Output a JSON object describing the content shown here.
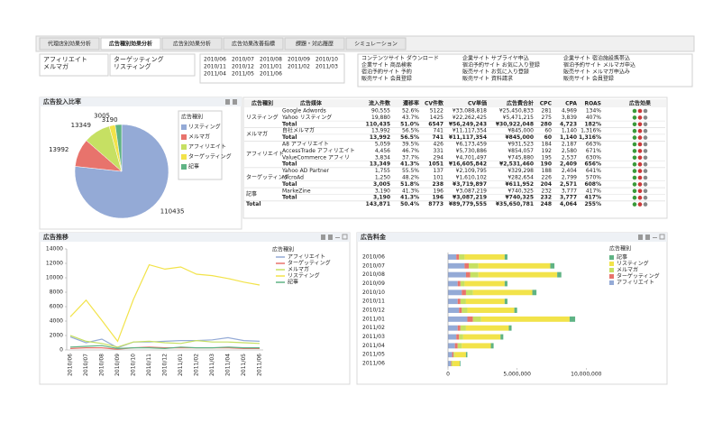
{
  "tabs": [
    "代理店別効果分析",
    "広告種別効果分析",
    "広告別効果分析",
    "広告効果改善指標",
    "課題・対応履歴",
    "シミュレーション"
  ],
  "active_tab": 1,
  "filters": {
    "types_a": [
      "アフィリエイト",
      "メルマガ"
    ],
    "types_b": [
      "ターゲッティング",
      "リスティング"
    ],
    "months": [
      "2010/06",
      "2010/07",
      "2010/08",
      "2010/09",
      "2010/10",
      "2010/11",
      "2010/12",
      "2011/01",
      "2011/02",
      "2011/03",
      "2011/04",
      "2011/05",
      "2011/06"
    ],
    "sites": [
      [
        "コンテンツサイト ダウンロード",
        "企業サイト 商品検索",
        "宿泊予約サイト 予約",
        "販売サイト 会員登録"
      ],
      [
        "企業サイト サプライヤ申込",
        "宿泊予約サイト お気に入り登録",
        "販売サイト お気に入り登録",
        "販売サイト 資料請求"
      ],
      [
        "企業サイト 宿泊施設携帯込",
        "宿泊予約サイト メルマガ申込",
        "販売サイト メルマガ申込み",
        "販売サイト 会員登録"
      ]
    ]
  },
  "table": {
    "columns": [
      "広告種別",
      "広告媒体",
      "流入件数",
      "遷移率",
      "CV件数",
      "CV単価",
      "広告費合計",
      "CPC",
      "CPA",
      "ROAS",
      "広告効果"
    ],
    "groups": [
      {
        "type": "リスティング",
        "rows": [
          [
            "Google Adwords",
            "90,555",
            "52.6%",
            "5122",
            "¥33,088,818",
            "¥25,450,833",
            "281",
            "4,969",
            "134%"
          ],
          [
            "Yahoo リスティング",
            "19,880",
            "43.7%",
            "1425",
            "¥22,262,425",
            "¥5,471,215",
            "275",
            "3,839",
            "407%"
          ],
          [
            "Total",
            "110,435",
            "51.0%",
            "6547",
            "¥56,249,243",
            "¥30,922,048",
            "280",
            "4,723",
            "182%"
          ]
        ]
      },
      {
        "type": "メルマガ",
        "rows": [
          [
            "自社メルマガ",
            "13,992",
            "56.5%",
            "741",
            "¥11,117,354",
            "¥845,000",
            "60",
            "1,140",
            "1,316%"
          ],
          [
            "Total",
            "13,992",
            "56.5%",
            "741",
            "¥11,117,354",
            "¥845,000",
            "60",
            "1,140",
            "1,316%"
          ]
        ]
      },
      {
        "type": "アフィリエイト",
        "rows": [
          [
            "A8 アフィリエイト",
            "5,059",
            "39.5%",
            "426",
            "¥6,173,459",
            "¥931,523",
            "184",
            "2,187",
            "663%"
          ],
          [
            "AccessTrade アフィリエイト",
            "4,456",
            "46.7%",
            "331",
            "¥5,730,886",
            "¥854,057",
            "192",
            "2,580",
            "671%"
          ],
          [
            "ValueCommerce アフィリ",
            "3,834",
            "37.7%",
            "294",
            "¥4,701,497",
            "¥745,880",
            "195",
            "2,537",
            "630%"
          ],
          [
            "Total",
            "13,349",
            "41.3%",
            "1051",
            "¥16,605,842",
            "¥2,531,460",
            "190",
            "2,409",
            "656%"
          ]
        ]
      },
      {
        "type": "ターゲッティング",
        "rows": [
          [
            "Yahoo AD Partner",
            "1,755",
            "55.5%",
            "137",
            "¥2,109,795",
            "¥329,298",
            "188",
            "2,404",
            "641%"
          ],
          [
            "MicroAd",
            "1,250",
            "48.2%",
            "101",
            "¥1,610,102",
            "¥282,654",
            "226",
            "2,799",
            "570%"
          ],
          [
            "Total",
            "3,005",
            "51.8%",
            "238",
            "¥3,719,897",
            "¥611,952",
            "204",
            "2,571",
            "608%"
          ]
        ]
      },
      {
        "type": "記事",
        "rows": [
          [
            "MarkeZine",
            "3,190",
            "41.3%",
            "196",
            "¥3,087,219",
            "¥740,325",
            "232",
            "3,777",
            "417%"
          ],
          [
            "Total",
            "3,190",
            "41.3%",
            "196",
            "¥3,087,219",
            "¥740,325",
            "232",
            "3,777",
            "417%"
          ]
        ]
      }
    ],
    "total": {
      "label": "Total",
      "cells": [
        "143,871",
        "50.4%",
        "8773",
        "¥89,779,555",
        "¥35,650,781",
        "248",
        "4,064",
        "255%"
      ]
    }
  },
  "chart_data": [
    {
      "type": "pie",
      "title": "広告投入比率",
      "legend_title": "広告種別",
      "categories": [
        "リスティング",
        "メルマガ",
        "アフィリエイト",
        "ターゲッティング",
        "記事"
      ],
      "values": [
        110435,
        13992,
        13349,
        3005,
        3190
      ],
      "colors": [
        "#94aad6",
        "#e8736c",
        "#c6e063",
        "#f2e34a",
        "#5fb384"
      ]
    },
    {
      "type": "line",
      "title": "広告推移",
      "legend_title": "広告種別",
      "categories": [
        "2010/06",
        "2010/07",
        "2010/08",
        "2010/09",
        "2010/10",
        "2010/11",
        "2010/12",
        "2011/01",
        "2011/02",
        "2011/03",
        "2011/04",
        "2011/05",
        "2011/06"
      ],
      "ylim": [
        0,
        14000
      ],
      "yticks": [
        0,
        2000,
        4000,
        6000,
        8000,
        10000,
        12000,
        14000
      ],
      "grid": false,
      "series": [
        {
          "name": "アフィリエイト",
          "color": "#94aad6",
          "values": [
            1800,
            1000,
            1500,
            300,
            1100,
            1100,
            1200,
            1300,
            1300,
            1400,
            1700,
            1300,
            1200
          ]
        },
        {
          "name": "ターゲッティング",
          "color": "#e8736c",
          "values": [
            200,
            300,
            300,
            100,
            300,
            400,
            300,
            300,
            300,
            300,
            300,
            200,
            200
          ]
        },
        {
          "name": "メルマガ",
          "color": "#c6e063",
          "values": [
            2000,
            1200,
            900,
            400,
            1100,
            1200,
            1000,
            900,
            1300,
            1100,
            1100,
            1000,
            900
          ]
        },
        {
          "name": "リスティング",
          "color": "#f2e34a",
          "values": [
            4600,
            6900,
            4100,
            1200,
            7000,
            11800,
            11200,
            11500,
            10500,
            10300,
            9900,
            9400,
            9000
          ]
        },
        {
          "name": "記事",
          "color": "#5fb384",
          "values": [
            400,
            500,
            600,
            200,
            300,
            300,
            200,
            400,
            300,
            300,
            400,
            300,
            300
          ]
        }
      ]
    },
    {
      "type": "hbar_stacked",
      "title": "広告料金",
      "legend_title": "広告種別",
      "categories": [
        "2010/06",
        "2010/07",
        "2010/08",
        "2010/09",
        "2010/10",
        "2010/11",
        "2010/12",
        "2011/01",
        "2011/02",
        "2011/03",
        "2011/04",
        "2011/05",
        "2011/06"
      ],
      "xlim": [
        0,
        12000000
      ],
      "xticks": [
        0,
        {
          "value": 5000000,
          "label": "5,000,000"
        },
        {
          "value": 10000000,
          "label": "10,000,000"
        }
      ],
      "series": [
        {
          "name": "アフィリエイト",
          "color": "#94aad6",
          "values": [
            600000,
            1200000,
            1300000,
            700000,
            1000000,
            700000,
            800000,
            1400000,
            700000,
            600000,
            500000,
            300000,
            200000
          ]
        },
        {
          "name": "ターゲッティング",
          "color": "#e8736c",
          "values": [
            200000,
            300000,
            300000,
            200000,
            300000,
            200000,
            200000,
            400000,
            200000,
            200000,
            200000,
            100000,
            50000
          ]
        },
        {
          "name": "メルマガ",
          "color": "#c6e063",
          "values": [
            400000,
            700000,
            600000,
            300000,
            500000,
            400000,
            400000,
            600000,
            400000,
            300000,
            300000,
            100000,
            100000
          ]
        },
        {
          "name": "リスティング",
          "color": "#f2e34a",
          "values": [
            2900000,
            5200000,
            5700000,
            2900000,
            4300000,
            2800000,
            3400000,
            6400000,
            3100000,
            2700000,
            2100000,
            800000,
            500000
          ]
        },
        {
          "name": "記事",
          "color": "#5fb384",
          "values": [
            200000,
            300000,
            300000,
            200000,
            300000,
            200000,
            200000,
            400000,
            200000,
            200000,
            200000,
            100000,
            50000
          ]
        }
      ]
    }
  ]
}
